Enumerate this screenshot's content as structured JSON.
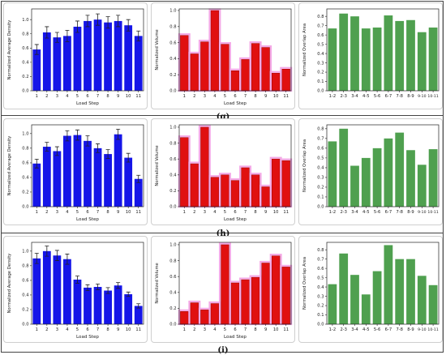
{
  "figure": {
    "rows": [
      {
        "label": "(g)"
      },
      {
        "label": "(h)"
      },
      {
        "label": "(i)"
      }
    ]
  },
  "colors": {
    "density": "#1515e8",
    "volume": "#e01010",
    "volume_glow": "#f4a9e6",
    "overlap": "#4fa04f",
    "errorbar": "#222222",
    "axis": "#222222"
  },
  "chart_data": [
    {
      "type": "bar",
      "row": "(g)",
      "panel": "density",
      "categories": [
        "1",
        "2",
        "3",
        "4",
        "5",
        "6",
        "7",
        "8",
        "9",
        "10",
        "11"
      ],
      "values": [
        0.58,
        0.82,
        0.75,
        0.77,
        0.9,
        0.98,
        1.0,
        0.96,
        0.98,
        0.92,
        0.77
      ],
      "errors": [
        0.07,
        0.08,
        0.07,
        0.08,
        0.08,
        0.08,
        0.08,
        0.08,
        0.08,
        0.08,
        0.07
      ],
      "xlabel": "Load Step",
      "ylabel": "Normalized Average Density",
      "ylim": [
        0,
        1.15
      ],
      "yticks": [
        0.0,
        0.2,
        0.4,
        0.6,
        0.8,
        1.0
      ],
      "grid": false
    },
    {
      "type": "bar",
      "row": "(g)",
      "panel": "volume",
      "categories": [
        "1",
        "2",
        "3",
        "4",
        "5",
        "6",
        "7",
        "8",
        "9",
        "10",
        "11"
      ],
      "values": [
        0.69,
        0.46,
        0.61,
        1.0,
        0.58,
        0.25,
        0.39,
        0.59,
        0.54,
        0.22,
        0.27
      ],
      "xlabel": "Load Step",
      "ylabel": "Normalized Volume",
      "ylim": [
        0,
        1.02
      ],
      "yticks": [
        0.0,
        0.2,
        0.4,
        0.6,
        0.8,
        1.0
      ],
      "grid": false
    },
    {
      "type": "bar",
      "row": "(g)",
      "panel": "overlap",
      "categories": [
        "1-2",
        "2-3",
        "3-4",
        "4-5",
        "5-6",
        "6-7",
        "7-8",
        "8-9",
        "9-10",
        "10-11"
      ],
      "values": [
        0.67,
        0.83,
        0.8,
        0.67,
        0.68,
        0.81,
        0.75,
        0.76,
        0.63,
        0.68
      ],
      "xlabel": "",
      "ylabel": "Normalized Overlap Area",
      "ylim": [
        0,
        0.88
      ],
      "yticks": [
        0.0,
        0.1,
        0.2,
        0.3,
        0.4,
        0.5,
        0.6,
        0.7,
        0.8
      ],
      "grid": false
    },
    {
      "type": "bar",
      "row": "(h)",
      "panel": "density",
      "categories": [
        "1",
        "2",
        "3",
        "4",
        "5",
        "6",
        "7",
        "8",
        "9",
        "10",
        "11"
      ],
      "values": [
        0.59,
        0.82,
        0.76,
        0.97,
        0.98,
        0.9,
        0.8,
        0.72,
        0.99,
        0.67,
        0.38
      ],
      "errors": [
        0.06,
        0.06,
        0.06,
        0.07,
        0.07,
        0.07,
        0.06,
        0.06,
        0.07,
        0.06,
        0.05
      ],
      "xlabel": "Load Step",
      "ylabel": "Normalized Average Density",
      "ylim": [
        0,
        1.12
      ],
      "yticks": [
        0.0,
        0.2,
        0.4,
        0.6,
        0.8,
        1.0
      ],
      "grid": false
    },
    {
      "type": "bar",
      "row": "(h)",
      "panel": "volume",
      "categories": [
        "1",
        "2",
        "3",
        "4",
        "5",
        "6",
        "7",
        "8",
        "9",
        "10",
        "11"
      ],
      "values": [
        0.87,
        0.54,
        1.0,
        0.37,
        0.4,
        0.33,
        0.49,
        0.4,
        0.25,
        0.6,
        0.58
      ],
      "xlabel": "Load Step",
      "ylabel": "Normalized Volume",
      "ylim": [
        0,
        1.03
      ],
      "yticks": [
        0.0,
        0.2,
        0.4,
        0.6,
        0.8,
        1.0
      ],
      "grid": false
    },
    {
      "type": "bar",
      "row": "(h)",
      "panel": "overlap",
      "categories": [
        "1-2",
        "2-3",
        "3-4",
        "4-5",
        "5-6",
        "6-7",
        "7-8",
        "8-9",
        "9-10",
        "10-11"
      ],
      "values": [
        0.67,
        0.8,
        0.42,
        0.5,
        0.6,
        0.7,
        0.76,
        0.58,
        0.43,
        0.59
      ],
      "xlabel": "",
      "ylabel": "Normalized Overlap Area",
      "ylim": [
        0,
        0.84
      ],
      "yticks": [
        0.0,
        0.1,
        0.2,
        0.3,
        0.4,
        0.5,
        0.6,
        0.7,
        0.8
      ],
      "grid": false
    },
    {
      "type": "bar",
      "row": "(i)",
      "panel": "density",
      "categories": [
        "1",
        "2",
        "3",
        "4",
        "5",
        "6",
        "7",
        "8",
        "9",
        "10",
        "11"
      ],
      "values": [
        0.9,
        1.0,
        0.94,
        0.89,
        0.61,
        0.5,
        0.51,
        0.46,
        0.53,
        0.41,
        0.25
      ],
      "errors": [
        0.07,
        0.07,
        0.07,
        0.07,
        0.05,
        0.04,
        0.04,
        0.04,
        0.04,
        0.03,
        0.03
      ],
      "xlabel": "Load Step",
      "ylabel": "Normalized Average Density",
      "ylim": [
        0,
        1.12
      ],
      "yticks": [
        0.0,
        0.2,
        0.4,
        0.6,
        0.8,
        1.0
      ],
      "grid": false
    },
    {
      "type": "bar",
      "row": "(i)",
      "panel": "volume",
      "categories": [
        "1",
        "2",
        "3",
        "4",
        "5",
        "6",
        "7",
        "8",
        "9",
        "10",
        "11"
      ],
      "values": [
        0.16,
        0.27,
        0.18,
        0.26,
        1.0,
        0.52,
        0.56,
        0.59,
        0.77,
        0.86,
        0.72
      ],
      "xlabel": "Load Step",
      "ylabel": "Normalized Volume",
      "ylim": [
        0,
        1.03
      ],
      "yticks": [
        0.0,
        0.2,
        0.4,
        0.6,
        0.8,
        1.0
      ],
      "grid": false
    },
    {
      "type": "bar",
      "row": "(i)",
      "panel": "overlap",
      "categories": [
        "1-2",
        "2-3",
        "3-4",
        "4-5",
        "5-6",
        "6-7",
        "7-8",
        "8-9",
        "9-10",
        "10-11"
      ],
      "values": [
        0.43,
        0.76,
        0.53,
        0.32,
        0.57,
        0.85,
        0.7,
        0.7,
        0.52,
        0.42
      ],
      "xlabel": "",
      "ylabel": "Normalized Overlap Area",
      "ylim": [
        0,
        0.88
      ],
      "yticks": [
        0.0,
        0.1,
        0.2,
        0.3,
        0.4,
        0.5,
        0.6,
        0.7,
        0.8
      ],
      "grid": false
    }
  ]
}
